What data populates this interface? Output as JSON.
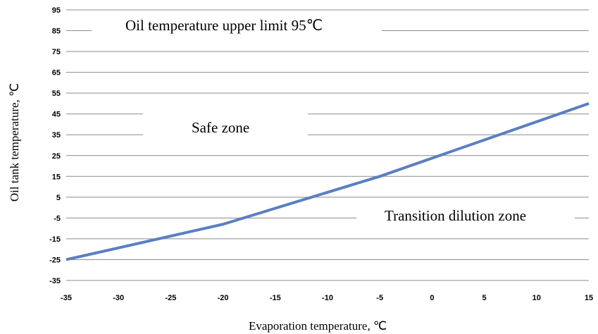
{
  "chart_data": {
    "type": "line",
    "title": "",
    "xlabel": "Evaporation temperature, ℃",
    "ylabel": "Oil tank temperature, ℃",
    "xlim": [
      -35,
      15
    ],
    "ylim": [
      -35,
      95
    ],
    "x_ticks": [
      "-35",
      "-30",
      "-25",
      "-20",
      "-15",
      "-10",
      "-5",
      "0",
      "5",
      "10",
      "15"
    ],
    "y_ticks": [
      "95",
      "85",
      "75",
      "65",
      "55",
      "45",
      "35",
      "25",
      "15",
      "5",
      "-5",
      "-15",
      "-25",
      "-35"
    ],
    "grid": true,
    "legend": "none",
    "series": [
      {
        "color": "#5b7fc0",
        "x": [
          -35,
          -20,
          -5,
          15
        ],
        "y": [
          -25,
          -8,
          15,
          50
        ]
      }
    ],
    "annotations": [
      "Oil temperature upper limit 95℃",
      "Safe zone",
      "Transition dilution zone"
    ]
  }
}
